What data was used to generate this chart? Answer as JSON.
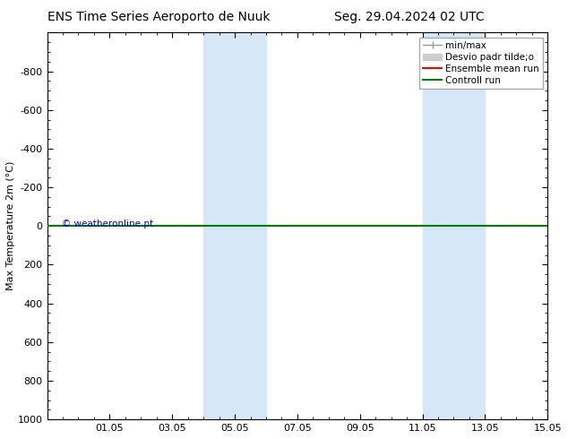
{
  "title_left": "ENS Time Series Aeroporto de Nuuk",
  "title_right": "Seg. 29.04.2024 02 UTC",
  "ylabel": "Max Temperature 2m (°C)",
  "xlim": [
    0,
    16
  ],
  "ylim": [
    1000,
    -1000
  ],
  "yticks": [
    -800,
    -600,
    -400,
    -200,
    0,
    200,
    400,
    600,
    800,
    1000
  ],
  "xtick_labels": [
    "01.05",
    "03.05",
    "05.05",
    "07.05",
    "09.05",
    "11.05",
    "13.05",
    "15.05"
  ],
  "xtick_positions": [
    2,
    4,
    6,
    8,
    10,
    12,
    14,
    16
  ],
  "bg_color": "#ffffff",
  "plot_bg_color": "#ffffff",
  "shaded_regions": [
    {
      "xmin": 5.0,
      "xmax": 7.0,
      "color": "#d6e8f7"
    },
    {
      "xmin": 12.0,
      "xmax": 14.0,
      "color": "#d6e8f7"
    }
  ],
  "green_line_y": 0,
  "watermark_text": "© weatheronline.pt",
  "watermark_color": "#0000cd",
  "legend_items": [
    {
      "label": "min/max",
      "color": "#999999",
      "lw": 1.0
    },
    {
      "label": "Desvio padr tilde;o",
      "color": "#cccccc",
      "lw": 6
    },
    {
      "label": "Ensemble mean run",
      "color": "#ff0000",
      "lw": 1.5
    },
    {
      "label": "Controll run",
      "color": "#008000",
      "lw": 1.5
    }
  ],
  "title_fontsize": 10,
  "axis_fontsize": 8,
  "tick_fontsize": 8,
  "legend_fontsize": 7.5
}
